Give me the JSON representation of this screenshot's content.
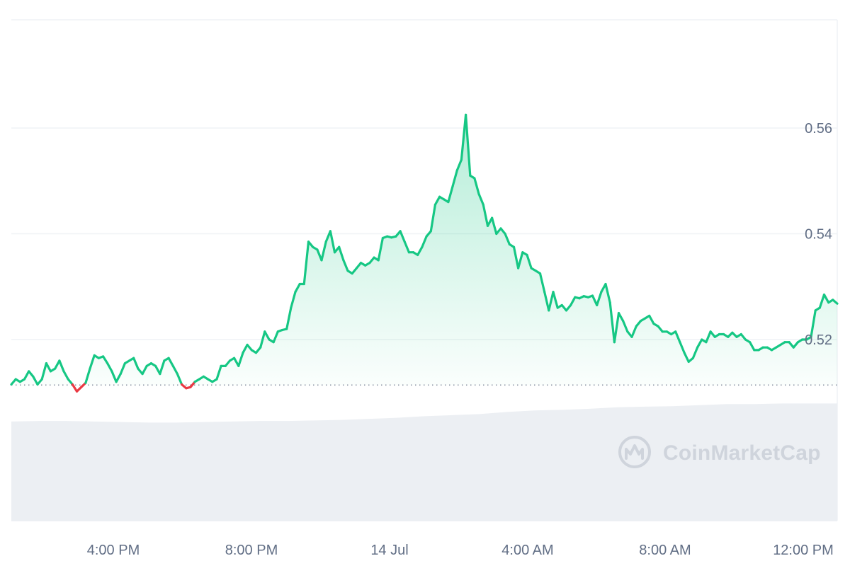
{
  "chart_data": {
    "type": "line",
    "x_ticks": [
      "4:00 PM",
      "8:00 PM",
      "14 Jul",
      "4:00 AM",
      "8:00 AM",
      "12:00 PM"
    ],
    "y_ticks": [
      "0.56",
      "0.54",
      "0.52"
    ],
    "ylim": [
      0.499,
      0.58
    ],
    "baseline": 0.5114,
    "grid": true,
    "colors": {
      "up": "#16c784",
      "down": "#ea3943",
      "grid": "#eff2f5",
      "volume": "#eceff3"
    },
    "watermark": "CoinMarketCap",
    "series": [
      {
        "values": [
          0.5115,
          0.5125,
          0.512,
          0.5125,
          0.514,
          0.513,
          0.5115,
          0.5125,
          0.5155,
          0.514,
          0.5145,
          0.516,
          0.514,
          0.5125,
          0.5115,
          0.5102,
          0.511,
          0.5118,
          0.5145,
          0.517,
          0.5165,
          0.5168,
          0.5155,
          0.514,
          0.512,
          0.5135,
          0.5155,
          0.516,
          0.5165,
          0.5145,
          0.5135,
          0.515,
          0.5155,
          0.515,
          0.5135,
          0.516,
          0.5165,
          0.515,
          0.5135,
          0.5115,
          0.5108,
          0.511,
          0.512,
          0.5125,
          0.513,
          0.5125,
          0.512,
          0.5125,
          0.515,
          0.515,
          0.516,
          0.5165,
          0.515,
          0.5175,
          0.519,
          0.518,
          0.5175,
          0.5185,
          0.5215,
          0.52,
          0.5195,
          0.5215,
          0.5218,
          0.522,
          0.526,
          0.529,
          0.5305,
          0.5305,
          0.5385,
          0.5375,
          0.537,
          0.535,
          0.5385,
          0.5405,
          0.5365,
          0.5375,
          0.535,
          0.533,
          0.5325,
          0.5335,
          0.5345,
          0.534,
          0.5345,
          0.5355,
          0.535,
          0.5392,
          0.5395,
          0.5393,
          0.5395,
          0.5405,
          0.5385,
          0.5365,
          0.5365,
          0.536,
          0.5375,
          0.5395,
          0.5405,
          0.5455,
          0.547,
          0.5465,
          0.546,
          0.549,
          0.552,
          0.554,
          0.5625,
          0.551,
          0.5505,
          0.5475,
          0.5455,
          0.5415,
          0.543,
          0.54,
          0.541,
          0.54,
          0.538,
          0.5375,
          0.5335,
          0.5365,
          0.536,
          0.5335,
          0.533,
          0.5325,
          0.529,
          0.5255,
          0.529,
          0.526,
          0.5265,
          0.5255,
          0.5265,
          0.528,
          0.5278,
          0.5282,
          0.528,
          0.5283,
          0.5265,
          0.529,
          0.5305,
          0.527,
          0.5195,
          0.525,
          0.5235,
          0.5215,
          0.5205,
          0.5225,
          0.5235,
          0.524,
          0.5245,
          0.523,
          0.5225,
          0.5215,
          0.5215,
          0.521,
          0.5215,
          0.5195,
          0.5175,
          0.5158,
          0.5165,
          0.5185,
          0.52,
          0.5195,
          0.5215,
          0.5205,
          0.521,
          0.521,
          0.5205,
          0.5213,
          0.5205,
          0.521,
          0.52,
          0.5195,
          0.518,
          0.518,
          0.5185,
          0.5185,
          0.518,
          0.5185,
          0.519,
          0.5195,
          0.5195,
          0.5185,
          0.5195,
          0.52,
          0.52,
          0.5205,
          0.5255,
          0.526,
          0.5285,
          0.527,
          0.5275,
          0.5268
        ]
      }
    ],
    "volume_top": [
      0.5045,
      0.5046,
      0.5046,
      0.5045,
      0.5044,
      0.5043,
      0.5043,
      0.5044,
      0.5045,
      0.5046,
      0.5046,
      0.5047,
      0.5048,
      0.505,
      0.5052,
      0.5055,
      0.5057,
      0.5059,
      0.5063,
      0.5066,
      0.5067,
      0.5069,
      0.5072,
      0.5073,
      0.5074,
      0.5076,
      0.5078,
      0.5078,
      0.5079,
      0.5079,
      0.5079
    ]
  }
}
